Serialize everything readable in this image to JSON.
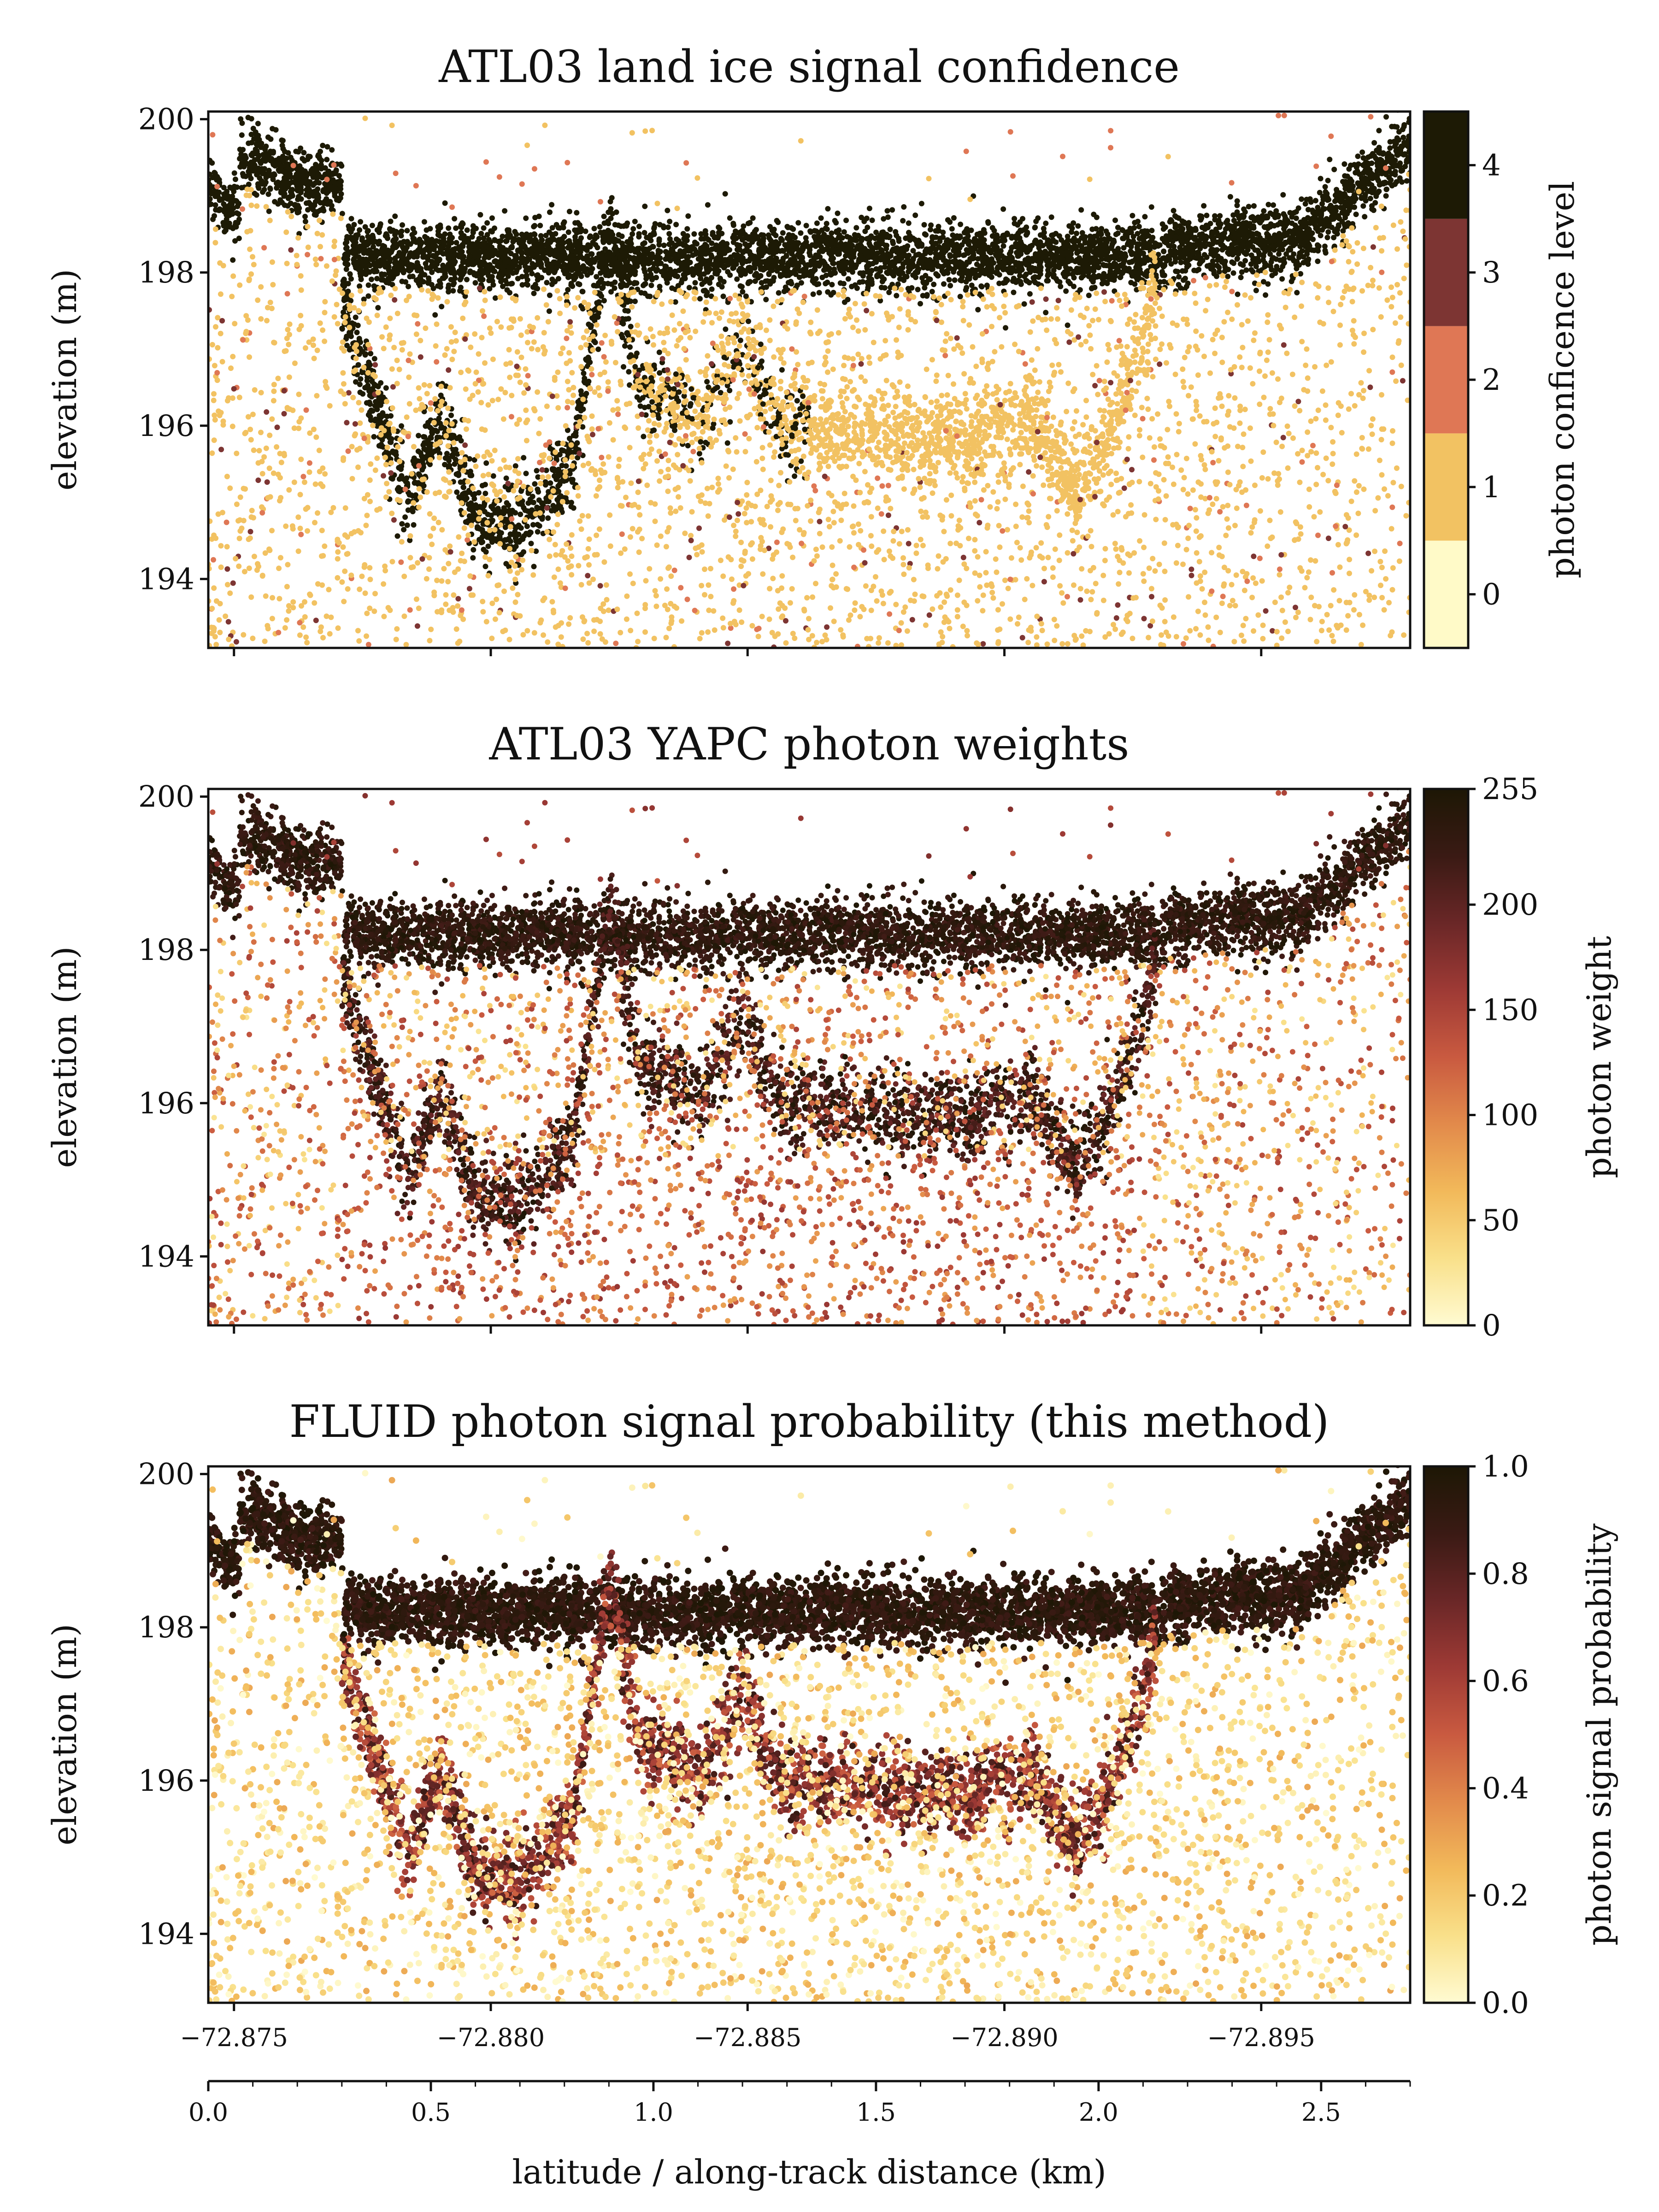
{
  "panels": [
    {
      "title": "ATL03 land ice signal confidence",
      "ylabel": "elevation (m)",
      "yticks": [
        "194",
        "196",
        "198",
        "200"
      ],
      "colorbar": {
        "label": "photon conficence level",
        "type": "discrete",
        "levels": [
          0,
          1,
          2,
          3,
          4
        ],
        "tick_labels": [
          "0",
          "1",
          "2",
          "3",
          "4"
        ],
        "colors": [
          "#fffac8",
          "#f2c262",
          "#df7755",
          "#7d3533",
          "#1d1a05"
        ]
      }
    },
    {
      "title": "ATL03 YAPC photon weights",
      "ylabel": "elevation (m)",
      "yticks": [
        "194",
        "196",
        "198",
        "200"
      ],
      "colorbar": {
        "label": "photon weight",
        "type": "continuous",
        "range": [
          0,
          255
        ],
        "tick_labels": [
          "0",
          "50",
          "100",
          "150",
          "200",
          "255"
        ],
        "tick_values": [
          0,
          50,
          100,
          150,
          200,
          255
        ]
      }
    },
    {
      "title": "FLUID photon signal probability (this method)",
      "ylabel": "elevation (m)",
      "yticks": [
        "194",
        "196",
        "198",
        "200"
      ],
      "colorbar": {
        "label": "photon signal probability",
        "type": "continuous",
        "range": [
          0,
          1
        ],
        "tick_labels": [
          "0.0",
          "0.2",
          "0.4",
          "0.6",
          "0.8",
          "1.0"
        ],
        "tick_values": [
          0,
          0.2,
          0.4,
          0.6,
          0.8,
          1.0
        ]
      }
    }
  ],
  "xaxis": {
    "label": "latitude / along-track distance (km)",
    "latitude_ticks": [
      "−72.875",
      "−72.880",
      "−72.885",
      "−72.890",
      "−72.895"
    ],
    "latitude_values": [
      -72.875,
      -72.88,
      -72.885,
      -72.89,
      -72.895
    ],
    "distance_ticks": [
      "0.0",
      "0.5",
      "1.0",
      "1.5",
      "2.0",
      "2.5"
    ],
    "distance_values": [
      0.0,
      0.5,
      1.0,
      1.5,
      2.0,
      2.5
    ]
  },
  "colormap_stops": [
    "#fffbd2",
    "#f9e08a",
    "#f2b95a",
    "#e28a4b",
    "#c95a40",
    "#9e3a35",
    "#6a2727",
    "#3a1a14",
    "#1d1705"
  ],
  "chart_data": {
    "type": "scatter",
    "xlim": [
      0.0,
      2.7
    ],
    "ylim": [
      193.1,
      200.1
    ],
    "description_fields": {
      "surface_elevation_m": 198.2,
      "lake_bottom_profile_km_m": [
        [
          0.3,
          197.6
        ],
        [
          0.45,
          195.0
        ],
        [
          0.52,
          196.2
        ],
        [
          0.6,
          194.8
        ],
        [
          0.7,
          194.7
        ],
        [
          0.82,
          195.5
        ],
        [
          0.9,
          198.6
        ],
        [
          0.97,
          196.6
        ],
        [
          1.1,
          196.1
        ],
        [
          1.2,
          197.1
        ],
        [
          1.3,
          196.0
        ],
        [
          1.5,
          195.9
        ],
        [
          1.7,
          195.8
        ],
        [
          1.85,
          196.1
        ],
        [
          1.95,
          195.1
        ],
        [
          2.05,
          196.2
        ],
        [
          2.13,
          197.8
        ]
      ]
    },
    "series": [
      {
        "name": "ATL03 land ice signal confidence",
        "value_range": [
          0,
          4
        ]
      },
      {
        "name": "ATL03 YAPC photon weights",
        "value_range": [
          0,
          255
        ]
      },
      {
        "name": "FLUID photon signal probability (this method)",
        "value_range": [
          0,
          1
        ]
      }
    ]
  }
}
